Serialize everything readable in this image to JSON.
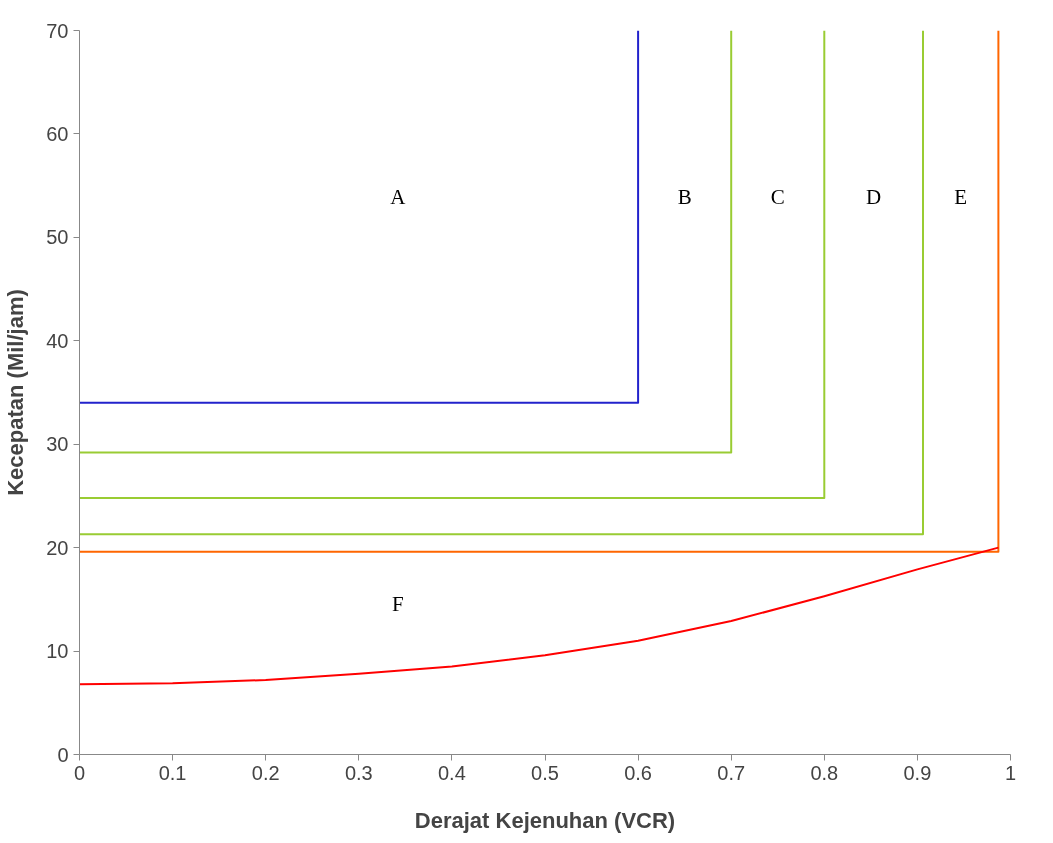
{
  "chart_data": {
    "type": "line",
    "xlabel": "Derajat Kejenuhan (VCR)",
    "ylabel": "Kecepatan (Mil/jam)",
    "xlim": [
      0,
      1
    ],
    "ylim": [
      0,
      70
    ],
    "xticks": [
      0,
      0.1,
      0.2,
      0.3,
      0.4,
      0.5,
      0.6,
      0.7,
      0.8,
      0.9,
      1
    ],
    "yticks": [
      0,
      10,
      20,
      30,
      40,
      50,
      60,
      70
    ],
    "grid": false,
    "marker": "none",
    "line_style": "solid",
    "series": [
      {
        "color": "#2222cc",
        "x": [
          0,
          0.6,
          0.6
        ],
        "values": [
          34,
          34,
          70
        ]
      },
      {
        "color": "#99cc33",
        "x": [
          0,
          0.7,
          0.7
        ],
        "values": [
          29.2,
          29.2,
          70
        ]
      },
      {
        "color": "#99cc33",
        "x": [
          0,
          0.8,
          0.8
        ],
        "values": [
          24.8,
          24.8,
          70
        ]
      },
      {
        "color": "#99cc33",
        "x": [
          0,
          0.906,
          0.906
        ],
        "values": [
          21.3,
          21.3,
          70
        ]
      },
      {
        "color": "#ff6600",
        "x": [
          0,
          0.987,
          0.987
        ],
        "values": [
          19.6,
          19.6,
          70
        ]
      },
      {
        "color": "#ff0000",
        "x": [
          0,
          0.1,
          0.2,
          0.3,
          0.4,
          0.5,
          0.6,
          0.7,
          0.8,
          0.9,
          0.987
        ],
        "values": [
          6.8,
          6.9,
          7.2,
          7.8,
          8.5,
          9.6,
          11.0,
          12.9,
          15.3,
          17.9,
          20.0
        ]
      }
    ],
    "annotations": [
      "A",
      "B",
      "C",
      "D",
      "E",
      "F"
    ]
  }
}
